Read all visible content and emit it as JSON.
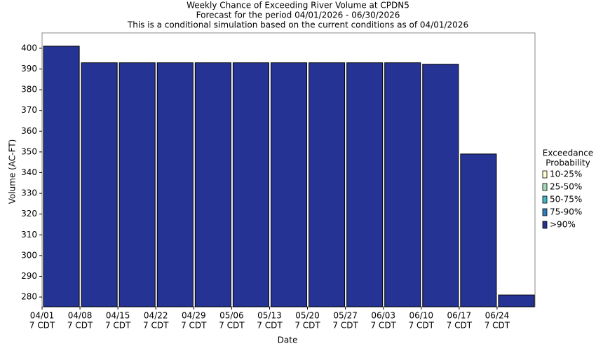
{
  "chart_data": {
    "type": "bar",
    "title": [
      "Weekly Chance of Exceeding River Volume at CPDN5",
      "Forecast for the period 04/01/2026 - 06/30/2026",
      "This is a conditional simulation based on the current conditions as of 04/01/2026"
    ],
    "x_label": "Date",
    "y_label": "Volume (AC-FT)",
    "categories": [
      [
        "04/01",
        "7 CDT"
      ],
      [
        "04/08",
        "7 CDT"
      ],
      [
        "04/15",
        "7 CDT"
      ],
      [
        "04/22",
        "7 CDT"
      ],
      [
        "04/29",
        "7 CDT"
      ],
      [
        "05/06",
        "7 CDT"
      ],
      [
        "05/13",
        "7 CDT"
      ],
      [
        "05/20",
        "7 CDT"
      ],
      [
        "05/27",
        "7 CDT"
      ],
      [
        "06/03",
        "7 CDT"
      ],
      [
        "06/10",
        "7 CDT"
      ],
      [
        "06/17",
        "7 CDT"
      ],
      [
        "06/24",
        "7 CDT"
      ]
    ],
    "legend_title": [
      "Exceedance",
      "Probability"
    ],
    "series": [
      {
        "name": "10-25%",
        "color": "#ffffcc"
      },
      {
        "name": "25-50%",
        "color": "#a1dab4"
      },
      {
        "name": "50-75%",
        "color": "#41b6c4"
      },
      {
        "name": "75-90%",
        "color": "#2c7fb8"
      },
      {
        "name": ">90%",
        "color": "#253494",
        "values": [
          401,
          393,
          393,
          393,
          393,
          393,
          393,
          393,
          393,
          393,
          392.3,
          349,
          281
        ]
      }
    ],
    "ylim": [
      275.3,
      407.4
    ],
    "yticks": [
      280,
      290,
      300,
      310,
      320,
      330,
      340,
      350,
      360,
      370,
      380,
      390,
      400
    ]
  }
}
